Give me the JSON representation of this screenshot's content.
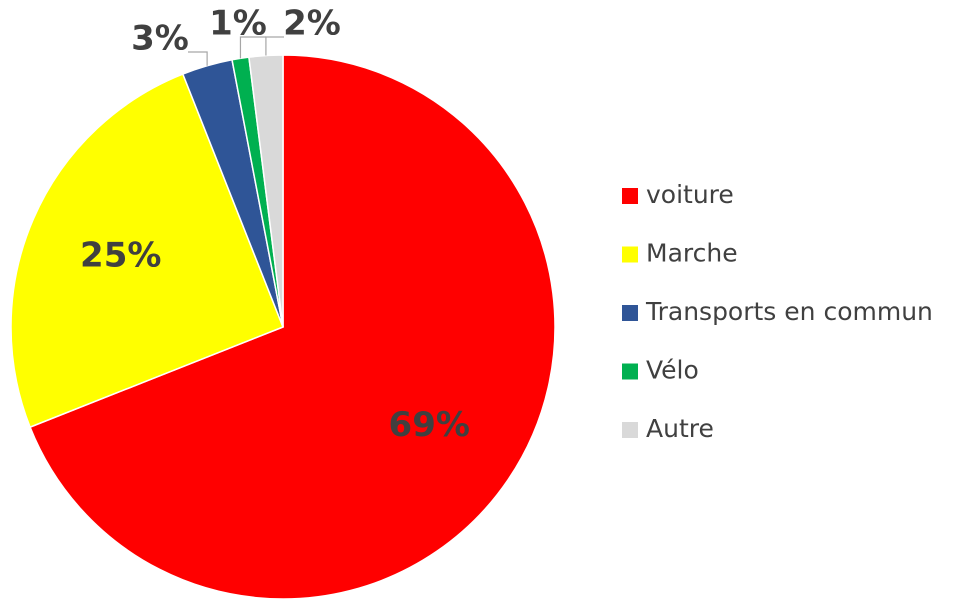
{
  "chart_data": {
    "type": "pie",
    "categories": [
      "voiture",
      "Marche",
      "Transports en commun",
      "Vélo",
      "Autre"
    ],
    "values": [
      69,
      25,
      3,
      1,
      2
    ],
    "value_labels": [
      "69%",
      "25%",
      "3%",
      "1%",
      "2%"
    ],
    "colors": [
      "#ff0000",
      "#ffff00",
      "#2f5597",
      "#00b050",
      "#d9d9d9"
    ],
    "legend": "right"
  }
}
